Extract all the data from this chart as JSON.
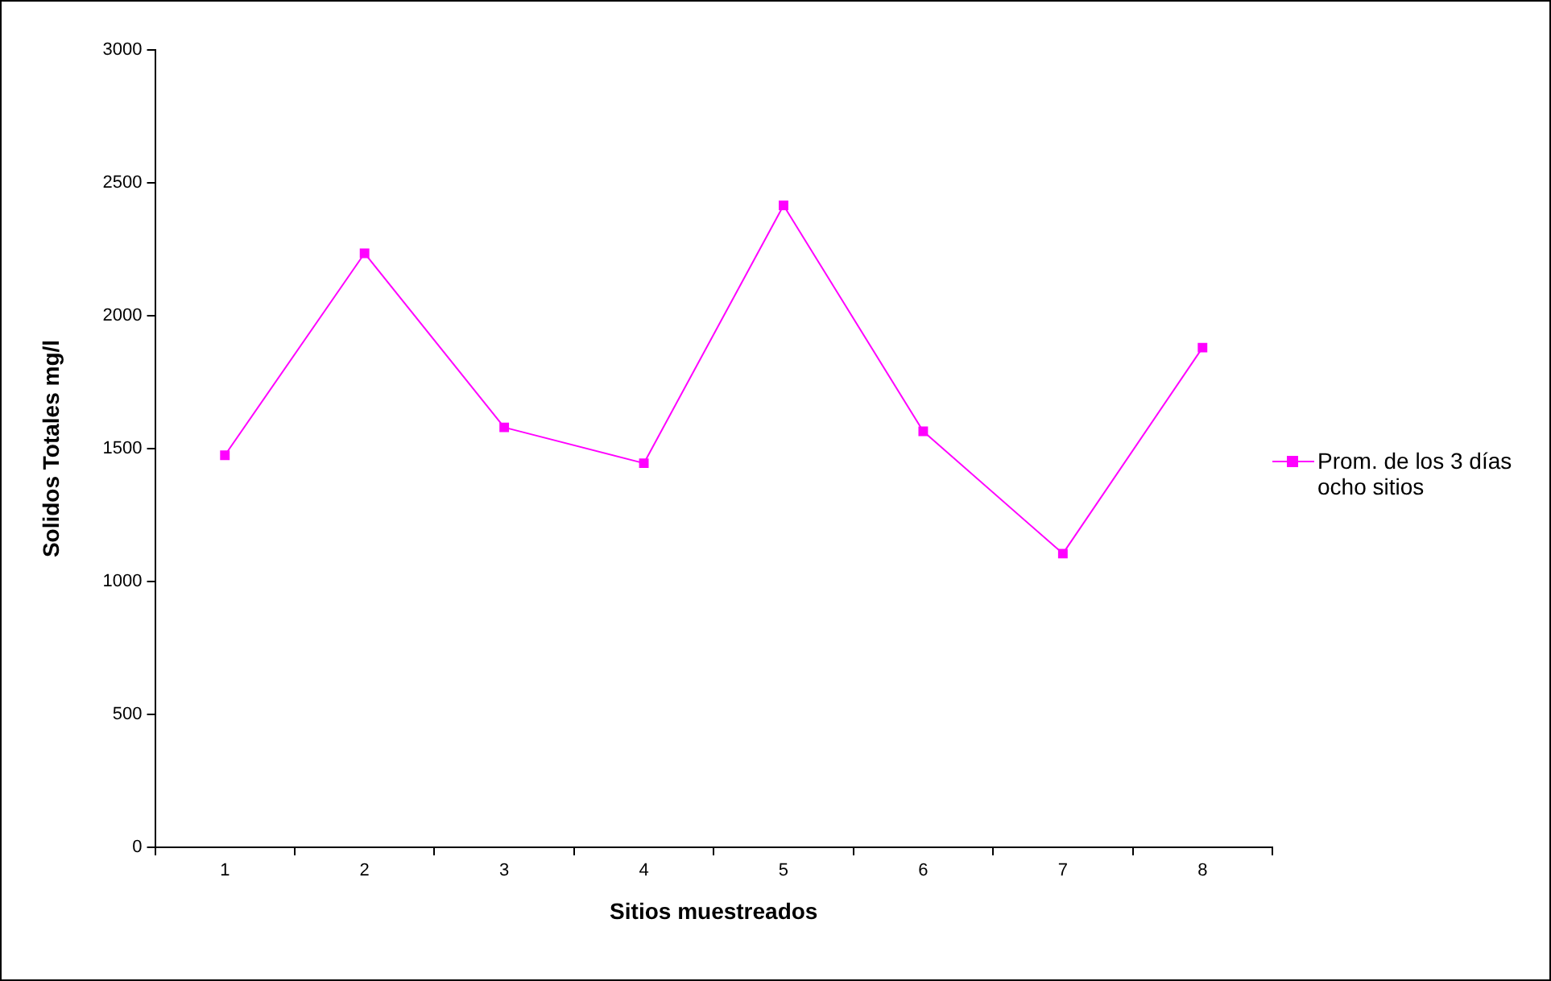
{
  "chart_data": {
    "type": "line",
    "xlabel": "Sitios muestreados",
    "ylabel": "Solidos Totales mg/l",
    "categories": [
      "1",
      "2",
      "3",
      "4",
      "5",
      "6",
      "7",
      "8"
    ],
    "series": [
      {
        "name": "Prom. de los 3 días ocho sitios",
        "color": "#ff00ff",
        "values": [
          1475,
          2235,
          1580,
          1445,
          2415,
          1565,
          1105,
          1880
        ]
      }
    ],
    "ylim": [
      0,
      3000
    ],
    "yticks": [
      0,
      500,
      1000,
      1500,
      2000,
      2500,
      3000
    ],
    "grid": false,
    "legend": "right",
    "marker": "square",
    "line_style": "solid"
  }
}
